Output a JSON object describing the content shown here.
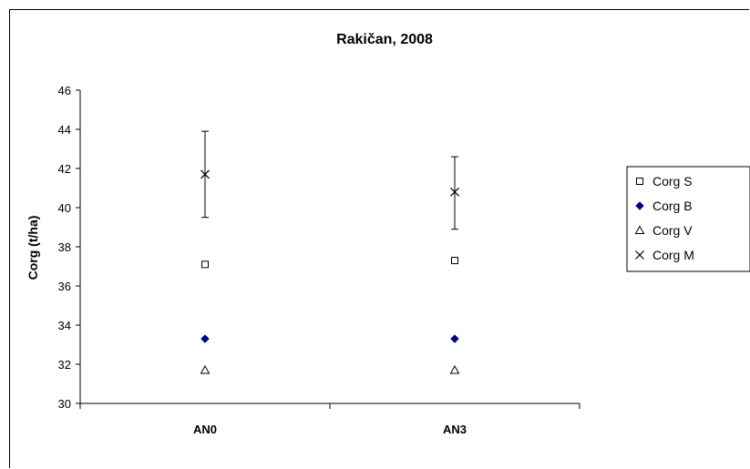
{
  "chart_data": {
    "type": "scatter",
    "title": "Rakičan, 2008",
    "xlabel": "",
    "ylabel": "Corg (t/ha)",
    "categories": [
      "AN0",
      "AN3"
    ],
    "ylim": [
      30,
      46
    ],
    "yticks": [
      "30",
      "32",
      "34",
      "36",
      "38",
      "40",
      "42",
      "44",
      "46"
    ],
    "grid": false,
    "legend_position": "right",
    "series": [
      {
        "name": "Corg S",
        "marker": "square-open",
        "color": "#000000",
        "values": [
          37.1,
          37.3
        ]
      },
      {
        "name": "Corg B",
        "marker": "diamond-filled",
        "color": "#000080",
        "values": [
          33.3,
          33.3
        ]
      },
      {
        "name": "Corg V",
        "marker": "triangle-open",
        "color": "#000000",
        "values": [
          31.7,
          31.7
        ]
      },
      {
        "name": "Corg M",
        "marker": "x",
        "color": "#000000",
        "values": [
          41.7,
          40.8
        ],
        "error_low": [
          39.5,
          38.9
        ],
        "error_high": [
          43.9,
          42.6
        ]
      }
    ]
  }
}
